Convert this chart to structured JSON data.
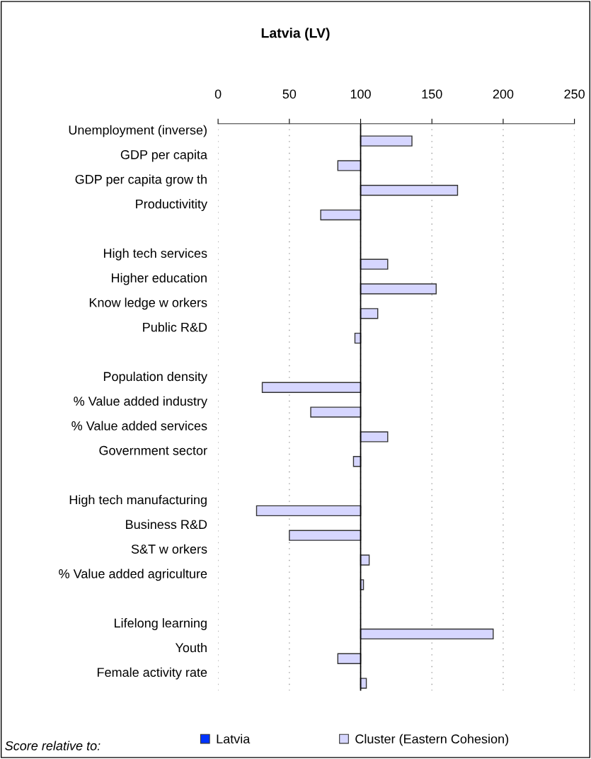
{
  "chart_data": {
    "type": "bar",
    "orientation": "horizontal",
    "title": "Latvia (LV)",
    "legend_title": "Score relative to:",
    "categories": [
      "Unemployment (inverse)",
      "GDP per capita",
      "GDP per capita grow th",
      "Productivitity",
      null,
      "High tech services",
      "Higher education",
      "Know ledge w orkers",
      "Public R&D",
      null,
      "Population density",
      "% Value added industry",
      "% Value added services",
      "Government sector",
      null,
      "High tech manufacturing",
      "Business R&D",
      "S&T w orkers",
      "% Value added agriculture",
      null,
      "Lifelong learning",
      "Youth",
      "Female activity rate"
    ],
    "series": [
      {
        "name": "Latvia",
        "color": "#0033ff",
        "values": [
          null,
          null,
          null,
          null,
          null,
          null,
          null,
          null,
          null,
          null,
          null,
          null,
          null,
          null,
          null,
          null,
          null,
          null,
          null,
          null,
          null,
          null,
          null
        ]
      },
      {
        "name": "Cluster (Eastern Cohesion)",
        "color": "#d6d6ff",
        "base": [
          100,
          100,
          100,
          100,
          null,
          100,
          100,
          100,
          100,
          null,
          100,
          100,
          100,
          100,
          null,
          100,
          100,
          100,
          100,
          null,
          100,
          100,
          100
        ],
        "values": [
          36,
          -16,
          68,
          -28,
          null,
          19,
          53,
          12,
          -4,
          null,
          -69,
          -35,
          19,
          -5,
          null,
          -73,
          -50,
          6,
          2,
          null,
          93,
          -16,
          4
        ]
      }
    ],
    "ref_lines": [
      {
        "axis": "x",
        "value": 100,
        "color": "#000000"
      }
    ],
    "xlim": [
      0,
      250
    ],
    "xticks": [
      0,
      50,
      100,
      150,
      200,
      250
    ],
    "grid": "x",
    "legend": "bottom"
  }
}
